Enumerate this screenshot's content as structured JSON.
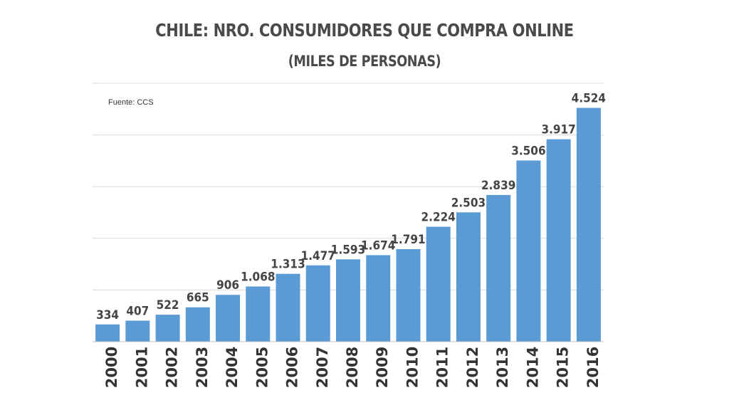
{
  "title": "CHILE: NRO. CONSUMIDORES QUE COMPRA ONLINE",
  "subtitle": "(MILES DE PERSONAS)",
  "source": "Fuente: CCS",
  "colors": {
    "bar": "#5b9bd5",
    "grid": "#d9d9d9",
    "axis": "#bfbfbf"
  },
  "chart_data": {
    "type": "bar",
    "title": "CHILE: NRO. CONSUMIDORES QUE COMPRA ONLINE",
    "subtitle": "(MILES DE PERSONAS)",
    "categories": [
      "2000",
      "2001",
      "2002",
      "2003",
      "2004",
      "2005",
      "2006",
      "2007",
      "2008",
      "2009",
      "2010",
      "2011",
      "2012",
      "2013",
      "2014",
      "2015",
      "2016"
    ],
    "values": [
      334,
      407,
      522,
      665,
      906,
      1068,
      1313,
      1477,
      1593,
      1674,
      1791,
      2224,
      2503,
      2839,
      3506,
      3917,
      4524
    ],
    "value_labels": [
      "334",
      "407",
      "522",
      "665",
      "906",
      "1.068",
      "1.313",
      "1.477",
      "1.593",
      "1.674",
      "1.791",
      "2.224",
      "2.503",
      "2.839",
      "3.506",
      "3.917",
      "4.524"
    ],
    "ylim": [
      0,
      5000
    ],
    "grid": true,
    "legend": "none"
  }
}
